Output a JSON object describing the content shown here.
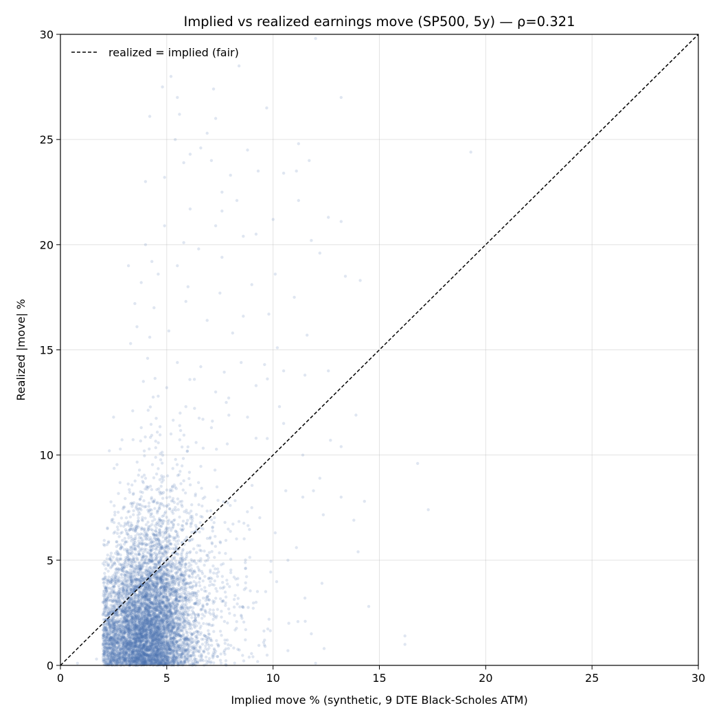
{
  "chart_data": {
    "type": "scatter",
    "title": "Implied vs realized earnings move (SP500, 5y) — ρ=0.321",
    "xlabel": "Implied move % (synthetic, 9 DTE Black-Scholes ATM)",
    "ylabel": "Realized |move| %",
    "xlim": [
      0,
      30
    ],
    "ylim": [
      0,
      30
    ],
    "xticks": [
      "0",
      "5",
      "10",
      "15",
      "20",
      "25",
      "30"
    ],
    "yticks": [
      "0",
      "5",
      "10",
      "15",
      "20",
      "25",
      "30"
    ],
    "grid": true,
    "legend_position": "top-left",
    "point_color": "#4c72b0",
    "point_alpha": 0.18,
    "reference_line": {
      "label": "realized = implied (fair)",
      "from": [
        0,
        0
      ],
      "to": [
        30,
        30
      ],
      "style": "dashed",
      "color": "#000000"
    },
    "series": [
      {
        "points": [
          [
            12.0,
            29.8
          ],
          [
            5.2,
            28.0
          ],
          [
            8.4,
            28.5
          ],
          [
            4.8,
            27.5
          ],
          [
            7.2,
            27.4
          ],
          [
            5.5,
            27.0
          ],
          [
            13.2,
            27.0
          ],
          [
            9.7,
            26.5
          ],
          [
            4.2,
            26.1
          ],
          [
            5.6,
            26.2
          ],
          [
            6.9,
            25.3
          ],
          [
            7.3,
            26.0
          ],
          [
            5.4,
            25.0
          ],
          [
            6.6,
            24.6
          ],
          [
            19.3,
            24.4
          ],
          [
            8.8,
            24.5
          ],
          [
            11.2,
            24.8
          ],
          [
            6.1,
            24.3
          ],
          [
            7.1,
            24.0
          ],
          [
            5.8,
            23.9
          ],
          [
            11.7,
            24.0
          ],
          [
            9.3,
            23.5
          ],
          [
            10.5,
            23.4
          ],
          [
            11.1,
            23.5
          ],
          [
            4.0,
            23.0
          ],
          [
            4.9,
            23.2
          ],
          [
            7.6,
            22.5
          ],
          [
            8.0,
            23.3
          ],
          [
            8.3,
            22.1
          ],
          [
            11.2,
            22.1
          ],
          [
            6.1,
            21.7
          ],
          [
            7.6,
            21.6
          ],
          [
            10.0,
            21.2
          ],
          [
            12.6,
            21.3
          ],
          [
            13.2,
            21.1
          ],
          [
            4.0,
            20.0
          ],
          [
            4.9,
            20.9
          ],
          [
            5.8,
            20.1
          ],
          [
            7.3,
            20.9
          ],
          [
            8.6,
            20.4
          ],
          [
            11.8,
            20.2
          ],
          [
            9.2,
            20.5
          ],
          [
            6.5,
            19.8
          ],
          [
            12.2,
            19.6
          ],
          [
            7.6,
            19.4
          ],
          [
            3.2,
            19.0
          ],
          [
            4.3,
            19.2
          ],
          [
            5.5,
            19.0
          ],
          [
            10.1,
            18.6
          ],
          [
            13.4,
            18.5
          ],
          [
            14.1,
            18.3
          ],
          [
            3.8,
            18.2
          ],
          [
            4.6,
            18.6
          ],
          [
            6.0,
            18.0
          ],
          [
            9.0,
            18.1
          ],
          [
            11.0,
            17.5
          ],
          [
            3.5,
            17.2
          ],
          [
            4.4,
            17.0
          ],
          [
            5.9,
            17.3
          ],
          [
            7.5,
            17.7
          ],
          [
            8.6,
            16.6
          ],
          [
            9.8,
            16.7
          ],
          [
            6.9,
            16.4
          ],
          [
            3.6,
            16.1
          ],
          [
            4.2,
            15.6
          ],
          [
            5.1,
            15.9
          ],
          [
            8.1,
            15.8
          ],
          [
            10.2,
            15.1
          ],
          [
            11.6,
            15.7
          ],
          [
            3.3,
            15.3
          ],
          [
            9.6,
            14.3
          ],
          [
            10.5,
            14.0
          ],
          [
            12.6,
            14.0
          ],
          [
            4.1,
            14.6
          ],
          [
            5.5,
            14.4
          ],
          [
            6.6,
            14.2
          ],
          [
            8.5,
            14.4
          ],
          [
            11.5,
            13.8
          ],
          [
            3.9,
            13.5
          ],
          [
            5.0,
            13.2
          ],
          [
            6.3,
            13.6
          ],
          [
            7.3,
            13.0
          ],
          [
            9.2,
            13.3
          ],
          [
            4.6,
            12.8
          ],
          [
            5.9,
            12.3
          ],
          [
            7.8,
            12.5
          ],
          [
            10.3,
            12.3
          ],
          [
            13.9,
            11.9
          ],
          [
            2.5,
            11.8
          ],
          [
            3.4,
            12.1
          ],
          [
            6.7,
            11.7
          ],
          [
            8.8,
            11.8
          ],
          [
            10.5,
            11.5
          ],
          [
            3.8,
            11.3
          ],
          [
            5.2,
            11.0
          ],
          [
            7.1,
            11.3
          ],
          [
            9.2,
            10.8
          ],
          [
            13.2,
            10.4
          ],
          [
            12.7,
            10.7
          ],
          [
            2.3,
            10.2
          ],
          [
            11.4,
            10.0
          ],
          [
            16.8,
            9.6
          ],
          [
            12.2,
            8.9
          ],
          [
            10.6,
            8.3
          ],
          [
            11.4,
            8.0
          ],
          [
            11.9,
            8.3
          ],
          [
            13.2,
            8.0
          ],
          [
            14.3,
            7.8
          ],
          [
            17.3,
            7.4
          ],
          [
            13.8,
            6.9
          ],
          [
            10.1,
            6.3
          ],
          [
            14.0,
            5.4
          ],
          [
            10.7,
            5.0
          ],
          [
            11.1,
            5.6
          ],
          [
            14.5,
            2.8
          ],
          [
            11.5,
            3.2
          ],
          [
            16.2,
            1.4
          ],
          [
            16.2,
            1.0
          ],
          [
            12.4,
            0.8
          ],
          [
            10.7,
            0.7
          ],
          [
            12.0,
            0.1
          ],
          [
            9.6,
            1.2
          ],
          [
            8.7,
            4.6
          ],
          [
            9.0,
            7.5
          ],
          [
            1.7,
            0.3
          ],
          [
            2.0,
            2.4
          ],
          [
            0.8,
            0.1
          ],
          [
            9.2,
            3.0
          ],
          [
            11.8,
            1.5
          ],
          [
            12.3,
            3.9
          ]
        ]
      }
    ]
  }
}
